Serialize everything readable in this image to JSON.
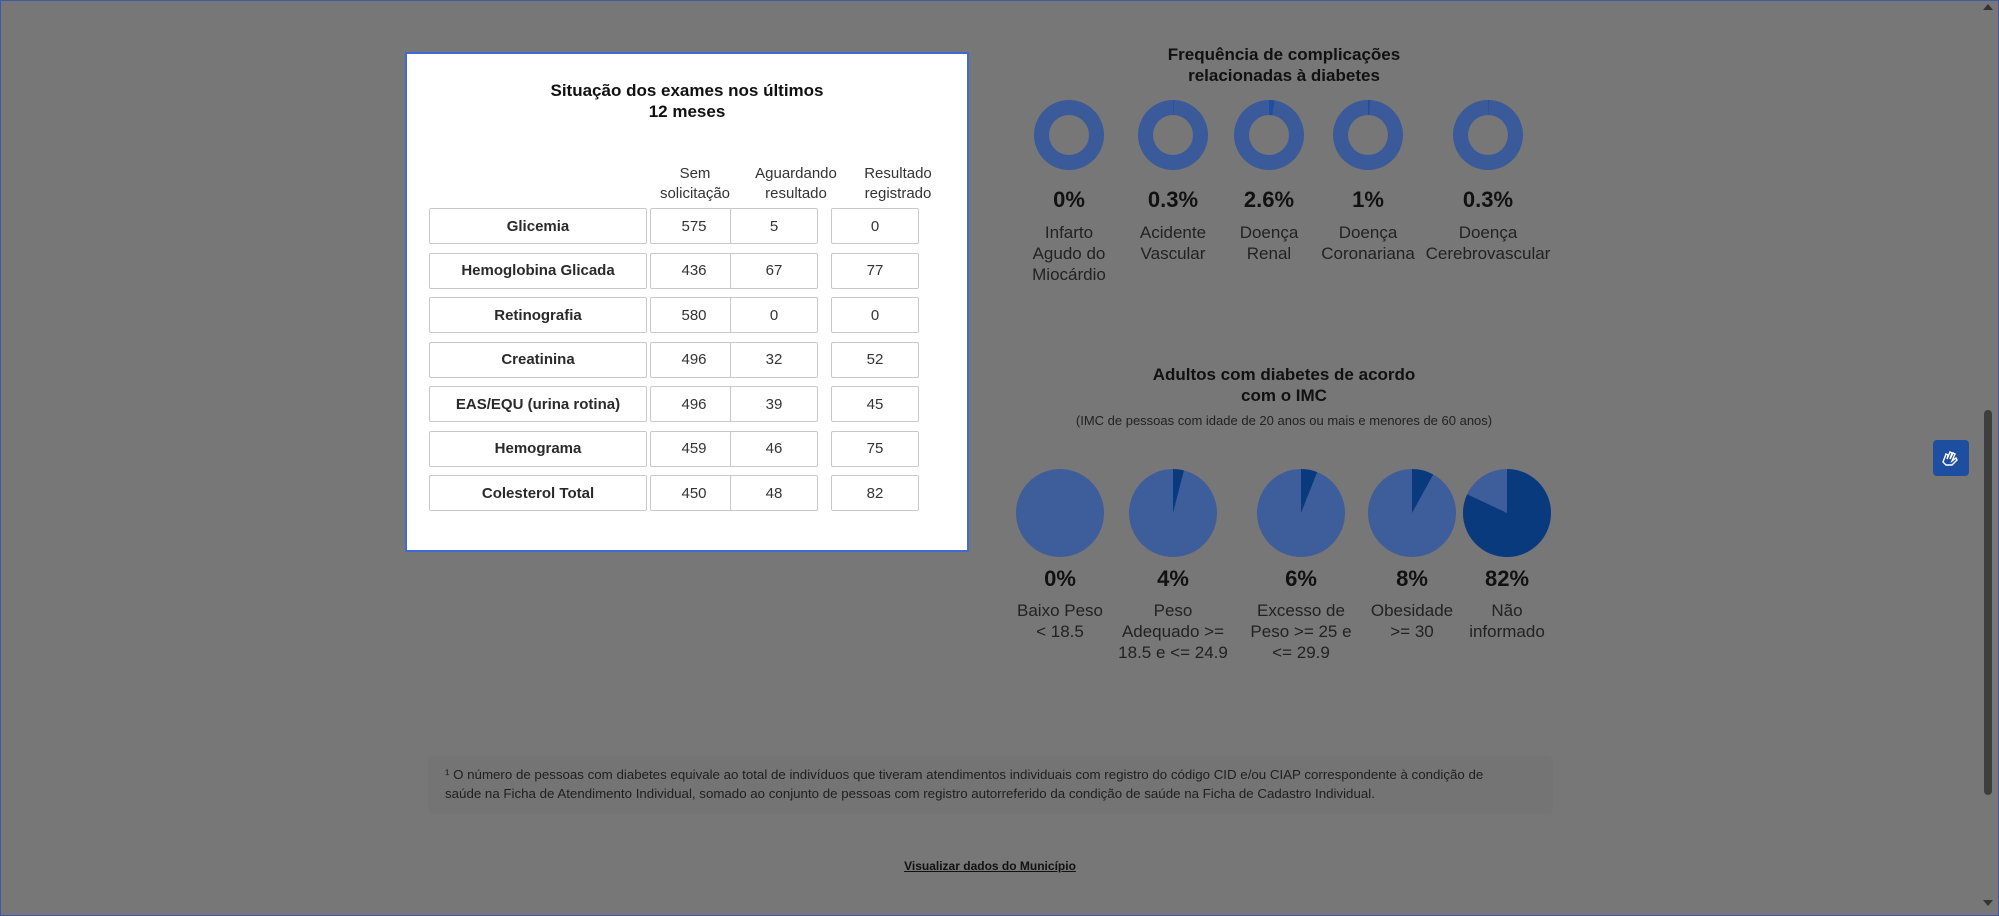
{
  "exams_modal": {
    "title_line1": "Situação dos exames nos últimos",
    "title_line2": "12 meses",
    "columns": [
      {
        "line1": "Sem",
        "line2": "solicitação"
      },
      {
        "line1": "Aguardando",
        "line2": "resultado"
      },
      {
        "line1": "Resultado",
        "line2": "registrado"
      }
    ],
    "rows": [
      {
        "label": "Glicemia",
        "values": [
          "575",
          "5",
          "0"
        ]
      },
      {
        "label": "Hemoglobina Glicada",
        "values": [
          "436",
          "67",
          "77"
        ]
      },
      {
        "label": "Retinografia",
        "values": [
          "580",
          "0",
          "0"
        ]
      },
      {
        "label": "Creatinina",
        "values": [
          "496",
          "32",
          "52"
        ]
      },
      {
        "label": "EAS/EQU (urina rotina)",
        "values": [
          "496",
          "39",
          "45"
        ]
      },
      {
        "label": "Hemograma",
        "values": [
          "459",
          "46",
          "75"
        ]
      },
      {
        "label": "Colesterol Total",
        "values": [
          "450",
          "48",
          "82"
        ]
      }
    ]
  },
  "complications": {
    "title_line1": "Frequência de complicações",
    "title_line2": "relacionadas à diabetes",
    "items": [
      {
        "pct": "0%",
        "fraction": 0.0,
        "label": [
          "Infarto",
          "Agudo do",
          "Miocárdio"
        ]
      },
      {
        "pct": "0.3%",
        "fraction": 0.003,
        "label": [
          "Acidente",
          "Vascular"
        ]
      },
      {
        "pct": "2.6%",
        "fraction": 0.026,
        "label": [
          "Doença",
          "Renal"
        ]
      },
      {
        "pct": "1%",
        "fraction": 0.01,
        "label": [
          "Doença",
          "Coronariana"
        ]
      },
      {
        "pct": "0.3%",
        "fraction": 0.003,
        "label": [
          "Doença",
          "Cerebrovascular"
        ]
      }
    ]
  },
  "imc": {
    "title_line1": "Adultos com diabetes de acordo",
    "title_line2": "com o IMC",
    "subtitle": "(IMC de pessoas com idade de 20 anos ou mais e menores de 60 anos)",
    "items": [
      {
        "pct": "0%",
        "fraction": 0.0,
        "label": [
          "Baixo Peso",
          "< 18.5"
        ]
      },
      {
        "pct": "4%",
        "fraction": 0.04,
        "label": [
          "Peso",
          "Adequado >=",
          "18.5 e <= 24.9"
        ]
      },
      {
        "pct": "6%",
        "fraction": 0.06,
        "label": [
          "Excesso de",
          "Peso >= 25 e",
          "<= 29.9"
        ]
      },
      {
        "pct": "8%",
        "fraction": 0.08,
        "label": [
          "Obesidade",
          ">= 30"
        ]
      },
      {
        "pct": "82%",
        "fraction": 0.82,
        "label": [
          "Não",
          "informado"
        ]
      }
    ]
  },
  "footnote": {
    "line1": "¹ O número de pessoas com diabetes equivale ao total de indivíduos que tiveram atendimentos individuais com registro do código CID e/ou CIAP correspondente à condição de",
    "line2": "saúde na Ficha de Atendimento Individual, somado ao conjunto de pessoas com registro autorreferido da condição de saúde na Ficha de Cadastro Individual."
  },
  "municipio_link": "Visualizar dados do Município",
  "colors": {
    "ring_base": "#3a5a9a",
    "ring_fill": "#1f4fa3",
    "pie_base": "#3e5d9b",
    "pie_fill": "#0a3a7e"
  },
  "icons": {
    "accessibility": "vlibras-hands-icon"
  }
}
